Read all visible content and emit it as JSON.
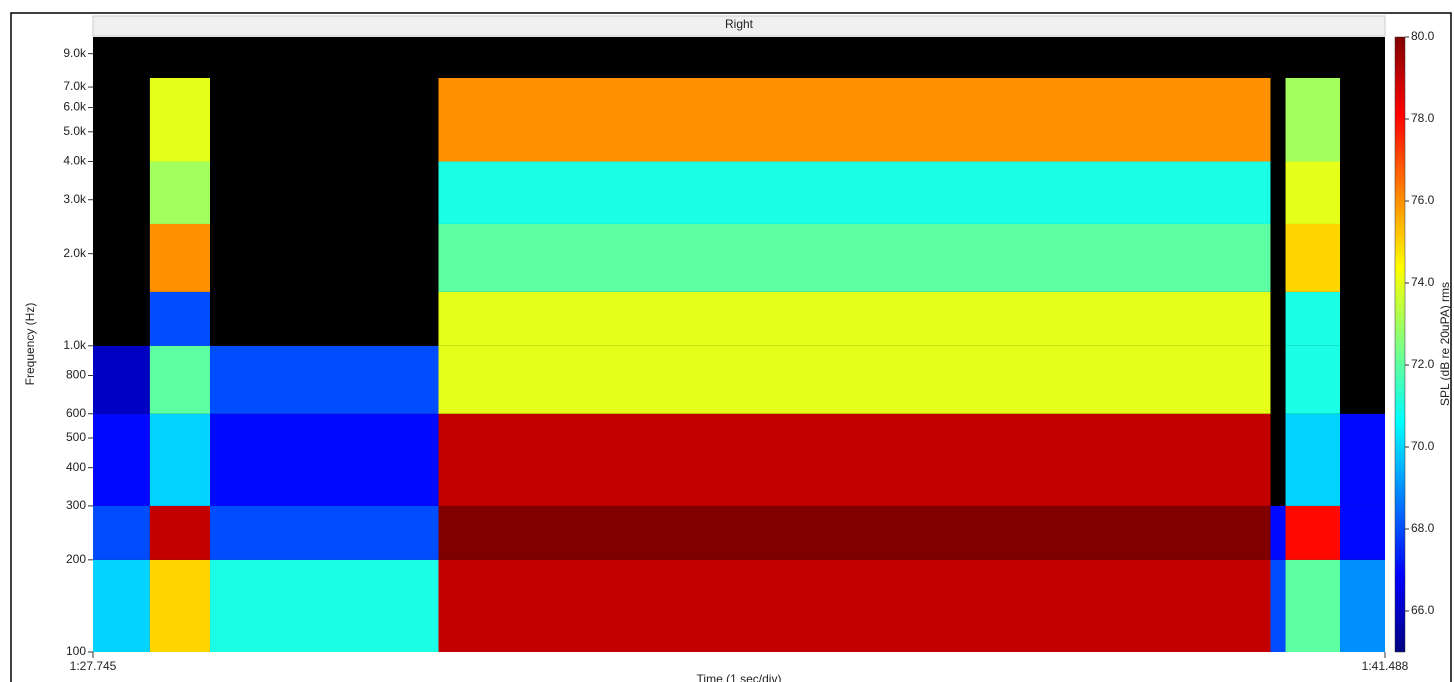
{
  "chart_data": {
    "type": "heatmap",
    "title": "Right",
    "xlabel": "Time (1 sec/div)",
    "ylabel": "Frequency (Hz)",
    "colorbar_label": "SPL (dB re 20uPA) rms",
    "yscale": "log",
    "xlim": [
      87.745,
      101.488
    ],
    "xticks": [
      {
        "value": 87.745,
        "label": "1:27.745"
      },
      {
        "value": 101.488,
        "label": "1:41.488"
      }
    ],
    "ylim": [
      100,
      10200
    ],
    "yticks": [
      100,
      200,
      300,
      400,
      500,
      600,
      800,
      {
        "value": 1000,
        "label": "1.0k"
      },
      {
        "value": 2000,
        "label": "2.0k"
      },
      {
        "value": 3000,
        "label": "3.0k"
      },
      {
        "value": 4000,
        "label": "4.0k"
      },
      {
        "value": 5000,
        "label": "5.0k"
      },
      {
        "value": 6000,
        "label": "6.0k"
      },
      {
        "value": 7000,
        "label": "7.0k"
      },
      {
        "value": 9000,
        "label": "9.0k"
      }
    ],
    "x_bins": [
      87.745,
      88.35,
      88.99,
      91.42,
      100.27,
      100.43,
      101.01,
      101.488
    ],
    "y_bins": [
      100,
      200,
      300,
      600,
      1000,
      1500,
      2500,
      4000,
      7500,
      10200
    ],
    "values": [
      [
        70,
        68,
        67,
        66,
        64,
        64,
        64,
        64,
        64
      ],
      [
        75,
        79,
        70,
        72,
        68,
        76,
        73,
        74,
        64
      ],
      [
        71,
        68,
        67,
        68,
        64,
        64,
        64,
        64,
        64
      ],
      [
        79,
        80,
        79,
        74,
        74,
        72,
        71,
        76,
        64
      ],
      [
        68,
        67,
        64,
        64,
        64,
        64,
        64,
        64,
        64
      ],
      [
        72,
        78,
        70,
        71,
        71,
        75,
        74,
        73,
        64
      ],
      [
        69,
        67,
        67,
        64,
        64,
        64,
        64,
        64,
        64
      ]
    ],
    "zlim": [
      65,
      80
    ],
    "zticks": [
      {
        "value": 66,
        "label": "66.0"
      },
      {
        "value": 68,
        "label": "68.0"
      },
      {
        "value": 70,
        "label": "70.0"
      },
      {
        "value": 72,
        "label": "72.0"
      },
      {
        "value": 74,
        "label": "74.0"
      },
      {
        "value": 76,
        "label": "76.0"
      },
      {
        "value": 78,
        "label": "78.0"
      },
      {
        "value": 80,
        "label": "80.0"
      }
    ],
    "colormap": "jet",
    "under_color": "#000000"
  }
}
